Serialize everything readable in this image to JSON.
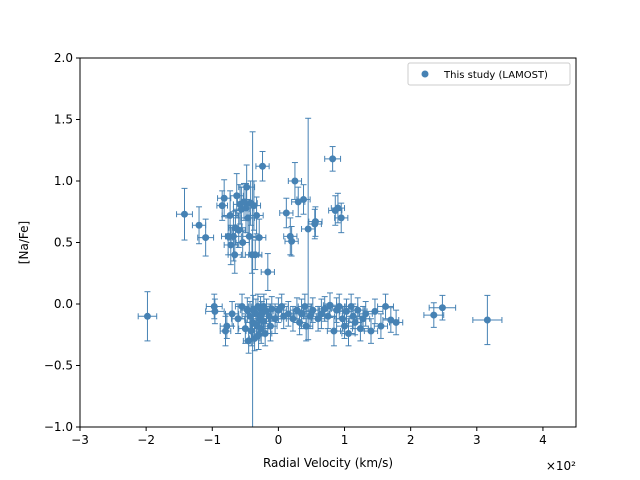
{
  "chart_data": {
    "type": "scatter",
    "xlabel": "Radial Velocity (km/s)",
    "ylabel": "[Na/Fe]",
    "x_offset_text": "×10²",
    "xlim": [
      -3,
      4.5
    ],
    "ylim": [
      -1.0,
      2.0
    ],
    "x_ticks": [
      -3,
      -2,
      -1,
      0,
      1,
      2,
      3,
      4
    ],
    "x_tick_labels": [
      "−3",
      "−2",
      "−1",
      "0",
      "1",
      "2",
      "3",
      "4"
    ],
    "y_ticks": [
      -1.0,
      -0.5,
      0.0,
      0.5,
      1.0,
      1.5,
      2.0
    ],
    "y_tick_labels": [
      "−1.0",
      "−0.5",
      "0.0",
      "0.5",
      "1.0",
      "1.5",
      "2.0"
    ],
    "grid": false,
    "legend_position": "top-right",
    "color": "#4682b4",
    "series": [
      {
        "name": "This study (LAMOST)",
        "points": [
          {
            "x": -1.98,
            "y": -0.1,
            "xerr": 0.14,
            "yerr": 0.2
          },
          {
            "x": -1.42,
            "y": 0.73,
            "xerr": 0.12,
            "yerr": 0.21
          },
          {
            "x": -1.2,
            "y": 0.64,
            "xerr": 0.1,
            "yerr": 0.15
          },
          {
            "x": -1.1,
            "y": 0.54,
            "xerr": 0.12,
            "yerr": 0.15
          },
          {
            "x": -0.97,
            "y": -0.02,
            "xerr": 0.12,
            "yerr": 0.1
          },
          {
            "x": -0.96,
            "y": -0.06,
            "xerr": 0.14,
            "yerr": 0.1
          },
          {
            "x": -0.85,
            "y": 0.8,
            "xerr": 0.08,
            "yerr": 0.12
          },
          {
            "x": -0.82,
            "y": 0.86,
            "xerr": 0.1,
            "yerr": 0.15
          },
          {
            "x": -0.8,
            "y": -0.22,
            "xerr": 0.08,
            "yerr": 0.12
          },
          {
            "x": -0.78,
            "y": -0.18,
            "xerr": 0.1,
            "yerr": 0.1
          },
          {
            "x": -0.76,
            "y": 0.55,
            "xerr": 0.1,
            "yerr": 0.15
          },
          {
            "x": -0.73,
            "y": 0.72,
            "xerr": 0.12,
            "yerr": 0.2
          },
          {
            "x": -0.72,
            "y": 0.48,
            "xerr": 0.1,
            "yerr": 0.16
          },
          {
            "x": -0.7,
            "y": -0.08,
            "xerr": 0.1,
            "yerr": 0.1
          },
          {
            "x": -0.68,
            "y": 0.55,
            "xerr": 0.12,
            "yerr": 0.2
          },
          {
            "x": -0.66,
            "y": 0.4,
            "xerr": 0.1,
            "yerr": 0.15
          },
          {
            "x": -0.65,
            "y": 0.62,
            "xerr": 0.1,
            "yerr": 0.14
          },
          {
            "x": -0.63,
            "y": 0.88,
            "xerr": 0.1,
            "yerr": 0.18
          },
          {
            "x": -0.61,
            "y": -0.12,
            "xerr": 0.1,
            "yerr": 0.12
          },
          {
            "x": -0.6,
            "y": 0.6,
            "xerr": 0.1,
            "yerr": 0.14
          },
          {
            "x": -0.58,
            "y": 0.81,
            "xerr": 0.1,
            "yerr": 0.16
          },
          {
            "x": -0.56,
            "y": 0.77,
            "xerr": 0.12,
            "yerr": 0.18
          },
          {
            "x": -0.55,
            "y": -0.02,
            "xerr": 0.1,
            "yerr": 0.1
          },
          {
            "x": -0.54,
            "y": 0.5,
            "xerr": 0.1,
            "yerr": 0.12
          },
          {
            "x": -0.52,
            "y": 0.83,
            "xerr": 0.1,
            "yerr": 0.15
          },
          {
            "x": -0.5,
            "y": -0.2,
            "xerr": 0.1,
            "yerr": 0.12
          },
          {
            "x": -0.49,
            "y": 0.78,
            "xerr": 0.1,
            "yerr": 0.2
          },
          {
            "x": -0.48,
            "y": 0.95,
            "xerr": 0.12,
            "yerr": 0.18
          },
          {
            "x": -0.47,
            "y": -0.05,
            "xerr": 0.1,
            "yerr": 0.1
          },
          {
            "x": -0.46,
            "y": 0.7,
            "xerr": 0.1,
            "yerr": 0.15
          },
          {
            "x": -0.45,
            "y": -0.3,
            "xerr": 0.08,
            "yerr": 0.1
          },
          {
            "x": -0.44,
            "y": 0.55,
            "xerr": 0.1,
            "yerr": 0.15
          },
          {
            "x": -0.43,
            "y": -0.1,
            "xerr": 0.12,
            "yerr": 0.12
          },
          {
            "x": -0.42,
            "y": 0.82,
            "xerr": 0.1,
            "yerr": 0.18
          },
          {
            "x": -0.41,
            "y": -0.22,
            "xerr": 0.08,
            "yerr": 0.12
          },
          {
            "x": -0.4,
            "y": 0.4,
            "xerr": 0.1,
            "yerr": 0.15
          },
          {
            "x": -0.39,
            "y": -0.15,
            "xerr": 0.1,
            "yerr": 1.55
          },
          {
            "x": -0.38,
            "y": -0.05,
            "xerr": 0.1,
            "yerr": 0.12
          },
          {
            "x": -0.37,
            "y": 0.8,
            "xerr": 0.1,
            "yerr": 0.2
          },
          {
            "x": -0.36,
            "y": -0.28,
            "xerr": 0.08,
            "yerr": 0.1
          },
          {
            "x": -0.35,
            "y": 0.4,
            "xerr": 0.1,
            "yerr": 0.12
          },
          {
            "x": -0.34,
            "y": -0.08,
            "xerr": 0.12,
            "yerr": 0.12
          },
          {
            "x": -0.33,
            "y": 0.72,
            "xerr": 0.1,
            "yerr": 0.15
          },
          {
            "x": -0.32,
            "y": -0.18,
            "xerr": 0.1,
            "yerr": 0.1
          },
          {
            "x": -0.31,
            "y": -0.02,
            "xerr": 0.1,
            "yerr": 0.1
          },
          {
            "x": -0.3,
            "y": -0.25,
            "xerr": 0.1,
            "yerr": 0.12
          },
          {
            "x": -0.29,
            "y": 0.54,
            "xerr": 0.1,
            "yerr": 0.15
          },
          {
            "x": -0.28,
            "y": -0.12,
            "xerr": 0.1,
            "yerr": 0.12
          },
          {
            "x": -0.27,
            "y": -0.04,
            "xerr": 0.1,
            "yerr": 0.1
          },
          {
            "x": -0.26,
            "y": -0.2,
            "xerr": 0.1,
            "yerr": 0.12
          },
          {
            "x": -0.25,
            "y": -0.08,
            "xerr": 0.1,
            "yerr": 0.1
          },
          {
            "x": -0.24,
            "y": 1.12,
            "xerr": 0.1,
            "yerr": 0.12
          },
          {
            "x": -0.23,
            "y": -0.14,
            "xerr": 0.1,
            "yerr": 0.12
          },
          {
            "x": -0.22,
            "y": -0.02,
            "xerr": 0.1,
            "yerr": 0.1
          },
          {
            "x": -0.2,
            "y": -0.24,
            "xerr": 0.1,
            "yerr": 0.1
          },
          {
            "x": -0.18,
            "y": -0.06,
            "xerr": 0.1,
            "yerr": 0.1
          },
          {
            "x": -0.16,
            "y": 0.26,
            "xerr": 0.1,
            "yerr": 0.15
          },
          {
            "x": -0.14,
            "y": -0.1,
            "xerr": 0.1,
            "yerr": 0.1
          },
          {
            "x": -0.12,
            "y": -0.18,
            "xerr": 0.1,
            "yerr": 0.12
          },
          {
            "x": -0.1,
            "y": -0.04,
            "xerr": 0.1,
            "yerr": 0.1
          },
          {
            "x": -0.05,
            "y": -0.12,
            "xerr": 0.1,
            "yerr": 0.12
          },
          {
            "x": 0.0,
            "y": -0.05,
            "xerr": 0.12,
            "yerr": 0.1
          },
          {
            "x": 0.05,
            "y": -0.02,
            "xerr": 0.1,
            "yerr": 0.1
          },
          {
            "x": 0.08,
            "y": -0.1,
            "xerr": 0.1,
            "yerr": 0.1
          },
          {
            "x": 0.12,
            "y": 0.74,
            "xerr": 0.1,
            "yerr": 0.12
          },
          {
            "x": 0.15,
            "y": -0.08,
            "xerr": 0.1,
            "yerr": 0.1
          },
          {
            "x": 0.18,
            "y": 0.55,
            "xerr": 0.1,
            "yerr": 0.15
          },
          {
            "x": 0.2,
            "y": 0.51,
            "xerr": 0.1,
            "yerr": 0.12
          },
          {
            "x": 0.22,
            "y": -0.12,
            "xerr": 0.1,
            "yerr": 0.1
          },
          {
            "x": 0.25,
            "y": 1.0,
            "xerr": 0.1,
            "yerr": 0.15
          },
          {
            "x": 0.28,
            "y": -0.05,
            "xerr": 0.1,
            "yerr": 0.1
          },
          {
            "x": 0.3,
            "y": 0.83,
            "xerr": 0.1,
            "yerr": 0.12
          },
          {
            "x": 0.32,
            "y": -0.15,
            "xerr": 0.1,
            "yerr": 0.1
          },
          {
            "x": 0.35,
            "y": -0.08,
            "xerr": 0.12,
            "yerr": 0.12
          },
          {
            "x": 0.38,
            "y": 0.85,
            "xerr": 0.1,
            "yerr": 0.12
          },
          {
            "x": 0.4,
            "y": -0.02,
            "xerr": 0.1,
            "yerr": 0.1
          },
          {
            "x": 0.42,
            "y": -0.18,
            "xerr": 0.1,
            "yerr": 0.12
          },
          {
            "x": 0.45,
            "y": 0.61,
            "xerr": 0.1,
            "yerr": 0.9
          },
          {
            "x": 0.48,
            "y": -0.1,
            "xerr": 0.1,
            "yerr": 0.1
          },
          {
            "x": 0.52,
            "y": -0.05,
            "xerr": 0.1,
            "yerr": 0.1
          },
          {
            "x": 0.55,
            "y": 0.65,
            "xerr": 0.1,
            "yerr": 0.12
          },
          {
            "x": 0.56,
            "y": 0.67,
            "xerr": 0.1,
            "yerr": 0.12
          },
          {
            "x": 0.6,
            "y": -0.12,
            "xerr": 0.1,
            "yerr": 0.1
          },
          {
            "x": 0.65,
            "y": -0.08,
            "xerr": 0.12,
            "yerr": 0.12
          },
          {
            "x": 0.7,
            "y": -0.04,
            "xerr": 0.1,
            "yerr": 0.1
          },
          {
            "x": 0.75,
            "y": -0.1,
            "xerr": 0.1,
            "yerr": 0.1
          },
          {
            "x": 0.78,
            "y": -0.01,
            "xerr": 0.1,
            "yerr": 0.1
          },
          {
            "x": 0.82,
            "y": 1.18,
            "xerr": 0.12,
            "yerr": 0.1
          },
          {
            "x": 0.84,
            "y": -0.22,
            "xerr": 0.1,
            "yerr": 0.12
          },
          {
            "x": 0.86,
            "y": 0.76,
            "xerr": 0.1,
            "yerr": 0.12
          },
          {
            "x": 0.88,
            "y": -0.05,
            "xerr": 0.1,
            "yerr": 0.1
          },
          {
            "x": 0.9,
            "y": 0.78,
            "xerr": 0.1,
            "yerr": 0.12
          },
          {
            "x": 0.92,
            "y": -0.02,
            "xerr": 0.1,
            "yerr": 0.1
          },
          {
            "x": 0.95,
            "y": 0.7,
            "xerr": 0.1,
            "yerr": 0.12
          },
          {
            "x": 0.97,
            "y": -0.12,
            "xerr": 0.1,
            "yerr": 0.1
          },
          {
            "x": 1.0,
            "y": -0.18,
            "xerr": 0.12,
            "yerr": 0.1
          },
          {
            "x": 1.03,
            "y": -0.06,
            "xerr": 0.1,
            "yerr": 0.1
          },
          {
            "x": 1.06,
            "y": -0.24,
            "xerr": 0.1,
            "yerr": 0.1
          },
          {
            "x": 1.1,
            "y": -0.02,
            "xerr": 0.1,
            "yerr": 0.1
          },
          {
            "x": 1.13,
            "y": -0.1,
            "xerr": 0.1,
            "yerr": 0.1
          },
          {
            "x": 1.16,
            "y": -0.15,
            "xerr": 0.1,
            "yerr": 0.1
          },
          {
            "x": 1.2,
            "y": -0.05,
            "xerr": 0.1,
            "yerr": 0.1
          },
          {
            "x": 1.24,
            "y": -0.2,
            "xerr": 0.12,
            "yerr": 0.1
          },
          {
            "x": 1.28,
            "y": -0.12,
            "xerr": 0.1,
            "yerr": 0.1
          },
          {
            "x": 1.32,
            "y": -0.08,
            "xerr": 0.1,
            "yerr": 0.1
          },
          {
            "x": 1.4,
            "y": -0.22,
            "xerr": 0.1,
            "yerr": 0.1
          },
          {
            "x": 1.46,
            "y": -0.06,
            "xerr": 0.12,
            "yerr": 0.1
          },
          {
            "x": 1.55,
            "y": -0.18,
            "xerr": 0.1,
            "yerr": 0.1
          },
          {
            "x": 1.62,
            "y": -0.02,
            "xerr": 0.12,
            "yerr": 0.1
          },
          {
            "x": 1.7,
            "y": -0.13,
            "xerr": 0.12,
            "yerr": 0.1
          },
          {
            "x": 1.78,
            "y": -0.15,
            "xerr": 0.1,
            "yerr": 0.1
          },
          {
            "x": 2.35,
            "y": -0.09,
            "xerr": 0.15,
            "yerr": 0.1
          },
          {
            "x": 2.48,
            "y": -0.03,
            "xerr": 0.2,
            "yerr": 0.1
          },
          {
            "x": 3.16,
            "y": -0.13,
            "xerr": 0.22,
            "yerr": 0.2
          }
        ]
      }
    ]
  }
}
